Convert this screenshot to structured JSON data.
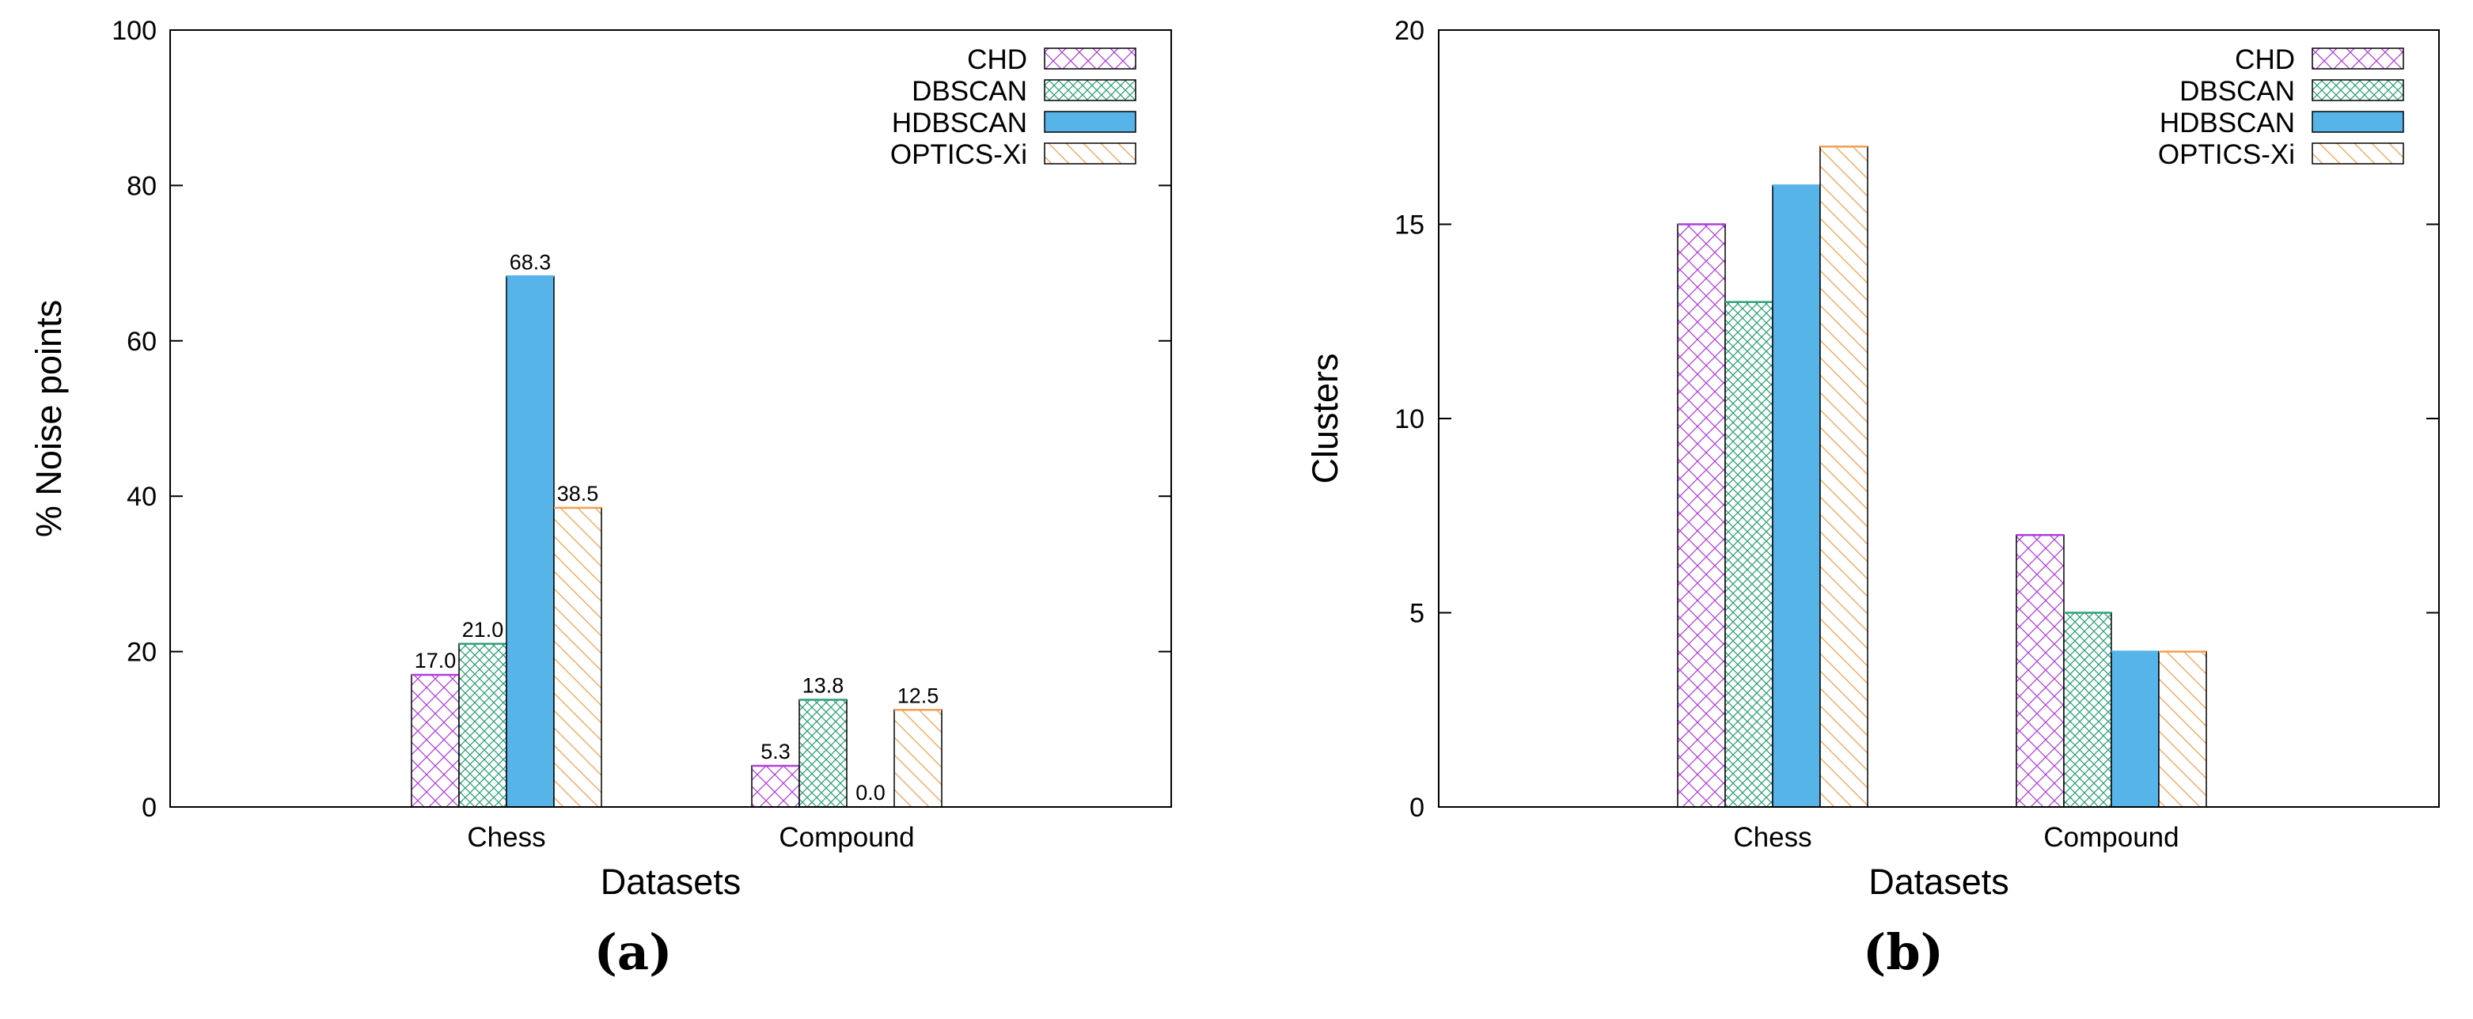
{
  "figure": {
    "panel_captions": [
      "(a)",
      "(b)"
    ]
  },
  "colors": {
    "CHD": "#b040d8",
    "DBSCAN": "#2ea07a",
    "HDBSCAN": "#56b4e9",
    "OPTICS-Xi": "#f0a050",
    "HDBSCAN_fill": "#56b4e9",
    "axis": "#000000"
  },
  "chart_data": [
    {
      "type": "bar",
      "title": "",
      "xlabel": "Datasets",
      "ylabel": "% Noise points",
      "categories": [
        "Chess",
        "Compound"
      ],
      "ylim": [
        0,
        100
      ],
      "yticks": [
        0,
        20,
        40,
        60,
        80,
        100
      ],
      "grid": false,
      "legend_position": "top-right",
      "data_labels": true,
      "series": [
        {
          "name": "CHD",
          "values": [
            17.0,
            5.3
          ],
          "labels": [
            "17.0",
            "5.3"
          ],
          "pattern": "crosshatch"
        },
        {
          "name": "DBSCAN",
          "values": [
            21.0,
            13.8
          ],
          "labels": [
            "21.0",
            "13.8"
          ],
          "pattern": "fine-crosshatch"
        },
        {
          "name": "HDBSCAN",
          "values": [
            68.3,
            0.0
          ],
          "labels": [
            "68.3",
            "0.0"
          ],
          "pattern": "solid"
        },
        {
          "name": "OPTICS-Xi",
          "values": [
            38.5,
            12.5
          ],
          "labels": [
            "38.5",
            "12.5"
          ],
          "pattern": "diagonal"
        }
      ]
    },
    {
      "type": "bar",
      "title": "",
      "xlabel": "Datasets",
      "ylabel": "Clusters",
      "categories": [
        "Chess",
        "Compound"
      ],
      "ylim": [
        0,
        20
      ],
      "yticks": [
        0,
        5,
        10,
        15,
        20
      ],
      "grid": false,
      "legend_position": "top-right",
      "data_labels": false,
      "series": [
        {
          "name": "CHD",
          "values": [
            15,
            7
          ],
          "pattern": "crosshatch"
        },
        {
          "name": "DBSCAN",
          "values": [
            13,
            5
          ],
          "pattern": "fine-crosshatch"
        },
        {
          "name": "HDBSCAN",
          "values": [
            16,
            4
          ],
          "pattern": "solid"
        },
        {
          "name": "OPTICS-Xi",
          "values": [
            17,
            4
          ],
          "pattern": "diagonal"
        }
      ]
    }
  ]
}
